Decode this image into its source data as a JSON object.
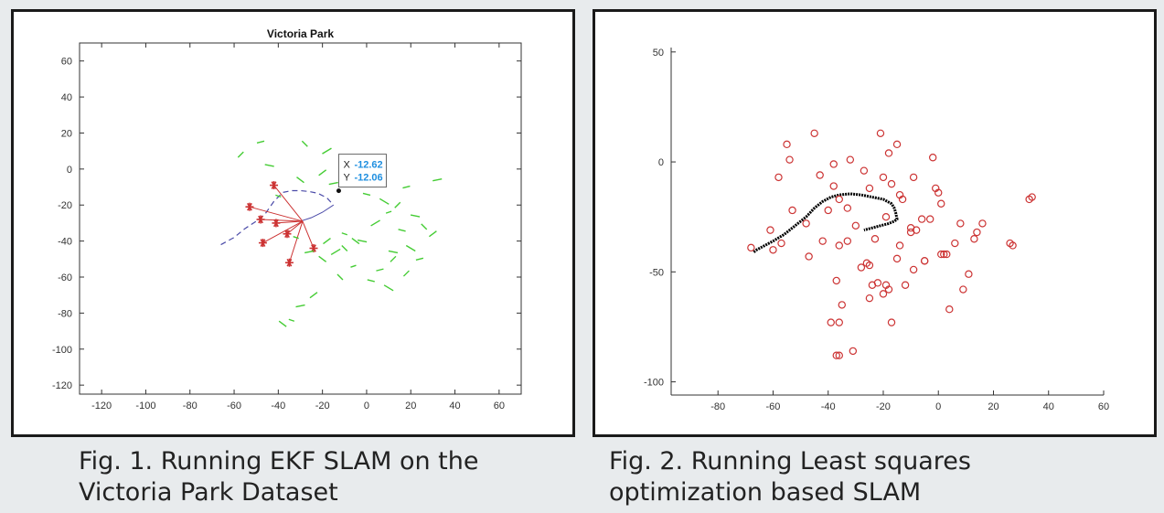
{
  "captions": {
    "fig1": "Fig. 1. Running EKF SLAM on the Victoria Park Dataset",
    "fig2": "Fig. 2. Running Least squares optimization based SLAM"
  },
  "colors": {
    "robot_path": "#4a4aa8",
    "landmark_green": "#44cc33",
    "landmark_red": "#cc3333",
    "trajectory": "#000000"
  },
  "chart_data": [
    {
      "type": "scatter",
      "title": "Victoria Park",
      "xlabel": "",
      "ylabel": "",
      "xlim": [
        -130,
        70
      ],
      "ylim": [
        -125,
        70
      ],
      "xticks": [
        -120,
        -100,
        -80,
        -60,
        -40,
        -20,
        0,
        20,
        40,
        60
      ],
      "yticks": [
        -120,
        -100,
        -80,
        -60,
        -40,
        -20,
        0,
        20,
        40,
        60
      ],
      "grid": false,
      "datatip": {
        "x_label": "X",
        "x": "-12.62",
        "y_label": "Y",
        "y": "-12.06"
      },
      "series": [
        {
          "kind": "dashed-line",
          "x": [
            -66,
            -60,
            -55,
            -50,
            -46,
            -42,
            -38,
            -34,
            -30,
            -26,
            -22,
            -18,
            -15
          ],
          "y": [
            -42,
            -38,
            -33,
            -29,
            -25,
            -18,
            -13,
            -12,
            -12,
            -12.5,
            -13.5,
            -16,
            -20
          ]
        },
        {
          "kind": "segment-line",
          "x": [
            -15,
            -20,
            -25,
            -30,
            -29
          ],
          "y": [
            -20,
            -24,
            -27,
            -29,
            -29
          ]
        },
        {
          "kind": "star",
          "x": [
            -42,
            -53,
            -48,
            -41,
            -47,
            -36,
            -35,
            -24
          ],
          "y": [
            -9,
            -21,
            -28,
            -30,
            -41,
            -36,
            -52,
            -44
          ]
        },
        {
          "kind": "rays",
          "origin": [
            -29,
            -29
          ],
          "targets_x": [
            -42,
            -53,
            -48,
            -41,
            -47,
            -36,
            -35,
            -24
          ],
          "targets_y": [
            -9,
            -21,
            -28,
            -30,
            -41,
            -36,
            -52,
            -44
          ]
        },
        {
          "kind": "dash-markers",
          "x": [
            -57,
            -48,
            -44,
            -28,
            -20,
            -15,
            -40,
            -30,
            -18,
            -8,
            0,
            8,
            14,
            18,
            22,
            26,
            30,
            32,
            -10,
            -5,
            4,
            10,
            16,
            20,
            12,
            6,
            -2,
            -10,
            -18,
            -26,
            -32,
            -20,
            -14,
            -6,
            2,
            10,
            18,
            24,
            12,
            -12,
            -24,
            -30,
            -34,
            -38
          ],
          "y": [
            8,
            15,
            2,
            14,
            -2,
            -8,
            -15,
            -6,
            10,
            5,
            -14,
            -18,
            -20,
            -10,
            -26,
            -32,
            -36,
            -6,
            -36,
            -40,
            -30,
            -24,
            -34,
            -44,
            -50,
            -56,
            -40,
            -44,
            -40,
            -46,
            -38,
            -50,
            -46,
            -54,
            -62,
            -66,
            -58,
            -50,
            -46,
            -60,
            -70,
            -76,
            -84,
            -86
          ]
        }
      ]
    },
    {
      "type": "scatter",
      "title": "",
      "xlabel": "",
      "ylabel": "",
      "xlim": [
        -97,
        60
      ],
      "ylim": [
        -106,
        52
      ],
      "xticks": [
        -80,
        -60,
        -40,
        -20,
        0,
        20,
        40,
        60
      ],
      "yticks": [
        -100,
        -50,
        0,
        50
      ],
      "grid": false,
      "series": [
        {
          "kind": "trajectory",
          "x": [
            -67,
            -66,
            -63,
            -60,
            -56,
            -52,
            -48,
            -45,
            -42,
            -39,
            -36,
            -32,
            -28,
            -24,
            -20,
            -17,
            -16,
            -15.5,
            -15,
            -16,
            -18,
            -21,
            -24,
            -27
          ],
          "y": [
            -41,
            -40,
            -38,
            -36,
            -33,
            -29,
            -25,
            -21,
            -18,
            -16,
            -15,
            -14.5,
            -15,
            -16,
            -17,
            -19,
            -21,
            -23,
            -26,
            -27,
            -28,
            -29,
            -30,
            -31
          ]
        },
        {
          "kind": "circle",
          "x": [
            -55,
            -54,
            -58,
            -45,
            -53,
            -61,
            -60,
            -57,
            -48,
            -43,
            -38,
            -36,
            -32,
            -27,
            -21,
            -18,
            -15,
            -25,
            -20,
            -17,
            -14,
            -13,
            -9,
            -2,
            -1,
            1,
            0,
            -3,
            2,
            -8,
            -5,
            -10,
            -14,
            -19,
            -23,
            -26,
            -30,
            -33,
            -36,
            -38,
            -40,
            -42,
            -47,
            -68,
            26,
            27,
            33,
            34,
            16,
            14,
            13,
            8,
            6,
            9,
            11,
            -5,
            -9,
            -12,
            1,
            3,
            4,
            -6,
            -10,
            -15,
            -19,
            -20,
            -24,
            -25,
            -28,
            -33,
            -35,
            -37,
            -39,
            -36,
            -36,
            -37,
            -31,
            -17,
            -18,
            -22,
            -25
          ],
          "y": [
            8,
            1,
            -7,
            13,
            -22,
            -31,
            -40,
            -37,
            -28,
            -6,
            -1,
            -17,
            1,
            -4,
            13,
            4,
            8,
            -12,
            -7,
            -10,
            -15,
            -17,
            -7,
            2,
            -12,
            -19,
            -14,
            -26,
            -42,
            -31,
            -45,
            -32,
            -38,
            -25,
            -35,
            -46,
            -29,
            -21,
            -38,
            -11,
            -22,
            -36,
            -43,
            -39,
            -37,
            -38,
            -17,
            -16,
            -28,
            -32,
            -35,
            -28,
            -37,
            -58,
            -51,
            -45,
            -49,
            -56,
            -42,
            -42,
            -67,
            -26,
            -30,
            -44,
            -56,
            -60,
            -56,
            -62,
            -48,
            -36,
            -65,
            -54,
            -73,
            -73,
            -88,
            -88,
            -86,
            -73,
            -58,
            -55,
            -47
          ]
        }
      ]
    }
  ]
}
